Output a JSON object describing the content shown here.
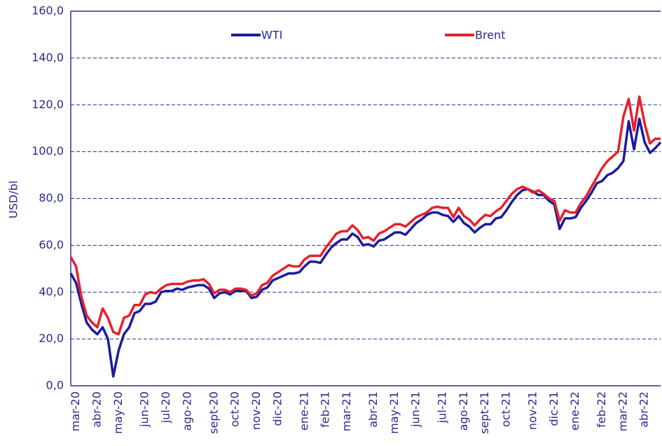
{
  "chart_data": {
    "type": "line",
    "y_label": "USD/bl",
    "categories": [
      null,
      "mar-20",
      null,
      null,
      null,
      "abr-20",
      null,
      null,
      null,
      "may-20",
      null,
      null,
      null,
      null,
      "jun-20",
      null,
      null,
      null,
      "jul-20",
      null,
      null,
      null,
      "ago-20",
      null,
      null,
      null,
      null,
      "sept-20",
      null,
      null,
      null,
      "oct-20",
      null,
      null,
      null,
      "nov-20",
      null,
      null,
      null,
      "dic-20",
      null,
      null,
      null,
      null,
      "ene-21",
      null,
      null,
      null,
      "feb-21",
      null,
      null,
      null,
      "mar-21",
      null,
      null,
      null,
      null,
      "abr-21",
      null,
      null,
      null,
      "may-21",
      null,
      null,
      null,
      "jun-21",
      null,
      null,
      null,
      null,
      "jul-21",
      null,
      null,
      null,
      "ago-21",
      null,
      null,
      null,
      "sept-21",
      null,
      null,
      null,
      "oct-21",
      null,
      null,
      null,
      null,
      "nov-21",
      null,
      null,
      null,
      "dic-21",
      null,
      null,
      null,
      "ene-22",
      null,
      null,
      null,
      null,
      "feb-22",
      null,
      null,
      null,
      "mar-22",
      null,
      null,
      null,
      "abr-22",
      null,
      null,
      null
    ],
    "series": [
      {
        "name": "WTI",
        "color": "#1c1c9e",
        "values": [
          48,
          44,
          35,
          27,
          24,
          22,
          25,
          20,
          4,
          15,
          22,
          25,
          31,
          32,
          35,
          35,
          36,
          40,
          40.5,
          40.5,
          41.5,
          41,
          42,
          42.5,
          43,
          43,
          41.5,
          37.5,
          39.5,
          40,
          39,
          40.5,
          40.5,
          40.5,
          37.5,
          38,
          41,
          42,
          45,
          46,
          47,
          48,
          48,
          48.5,
          51,
          53,
          53,
          52.5,
          56,
          59,
          61,
          62.5,
          62.5,
          65,
          63.5,
          60,
          60.5,
          59.5,
          62,
          62.5,
          64,
          65.5,
          65.5,
          64.5,
          67,
          69.5,
          71,
          73,
          74,
          74,
          73,
          72.5,
          70,
          72.5,
          69.5,
          68,
          65.5,
          67.5,
          69,
          69,
          71.5,
          72,
          75,
          78.5,
          81.5,
          83.5,
          84,
          83,
          81.5,
          81.5,
          79,
          77.5,
          67,
          71.5,
          71.5,
          72,
          76,
          79,
          82.5,
          86.5,
          87.5,
          90,
          91,
          93,
          96,
          113,
          101,
          114,
          104,
          99.5,
          101.5,
          104
        ]
      },
      {
        "name": "Brent",
        "color": "#e8202a",
        "values": [
          55,
          51,
          38,
          30,
          27,
          25,
          33,
          29,
          23,
          22,
          29,
          30,
          34.5,
          34.5,
          39,
          40,
          39.5,
          41.5,
          43,
          43.5,
          43.5,
          43.5,
          44.5,
          45,
          45,
          45.5,
          43.5,
          39.5,
          41,
          41,
          40,
          41.5,
          41.5,
          41,
          38.5,
          39.5,
          43,
          44,
          47,
          48.5,
          50,
          51.5,
          51,
          51,
          54,
          55.5,
          55.5,
          55.5,
          59,
          62,
          65,
          66,
          66,
          68.5,
          66.5,
          63,
          63.5,
          62,
          65,
          66,
          67.5,
          69,
          69,
          68,
          70,
          72,
          73,
          74,
          76,
          76.5,
          76,
          76,
          72,
          76,
          72.5,
          71,
          68.5,
          71,
          73,
          72.5,
          74.5,
          76,
          79,
          82,
          84,
          85,
          84,
          82.5,
          83.5,
          82,
          80,
          79,
          70.5,
          75,
          74,
          74,
          78,
          81,
          85,
          89,
          93,
          96,
          98,
          100,
          115,
          122.5,
          109,
          123.5,
          112,
          103.5,
          105.5,
          105.5
        ]
      }
    ],
    "ylim": [
      0,
      160
    ],
    "yticks": [
      {
        "value": 0,
        "label": "0,0"
      },
      {
        "value": 20,
        "label": "20,0"
      },
      {
        "value": 40,
        "label": "40,0"
      },
      {
        "value": 60,
        "label": "60,0"
      },
      {
        "value": 80,
        "label": "80,0"
      },
      {
        "value": 100,
        "label": "100,0"
      },
      {
        "value": 120,
        "label": "120,0"
      },
      {
        "value": 140,
        "label": "140,0"
      },
      {
        "value": 160,
        "label": "160,0"
      }
    ],
    "grid": true
  }
}
